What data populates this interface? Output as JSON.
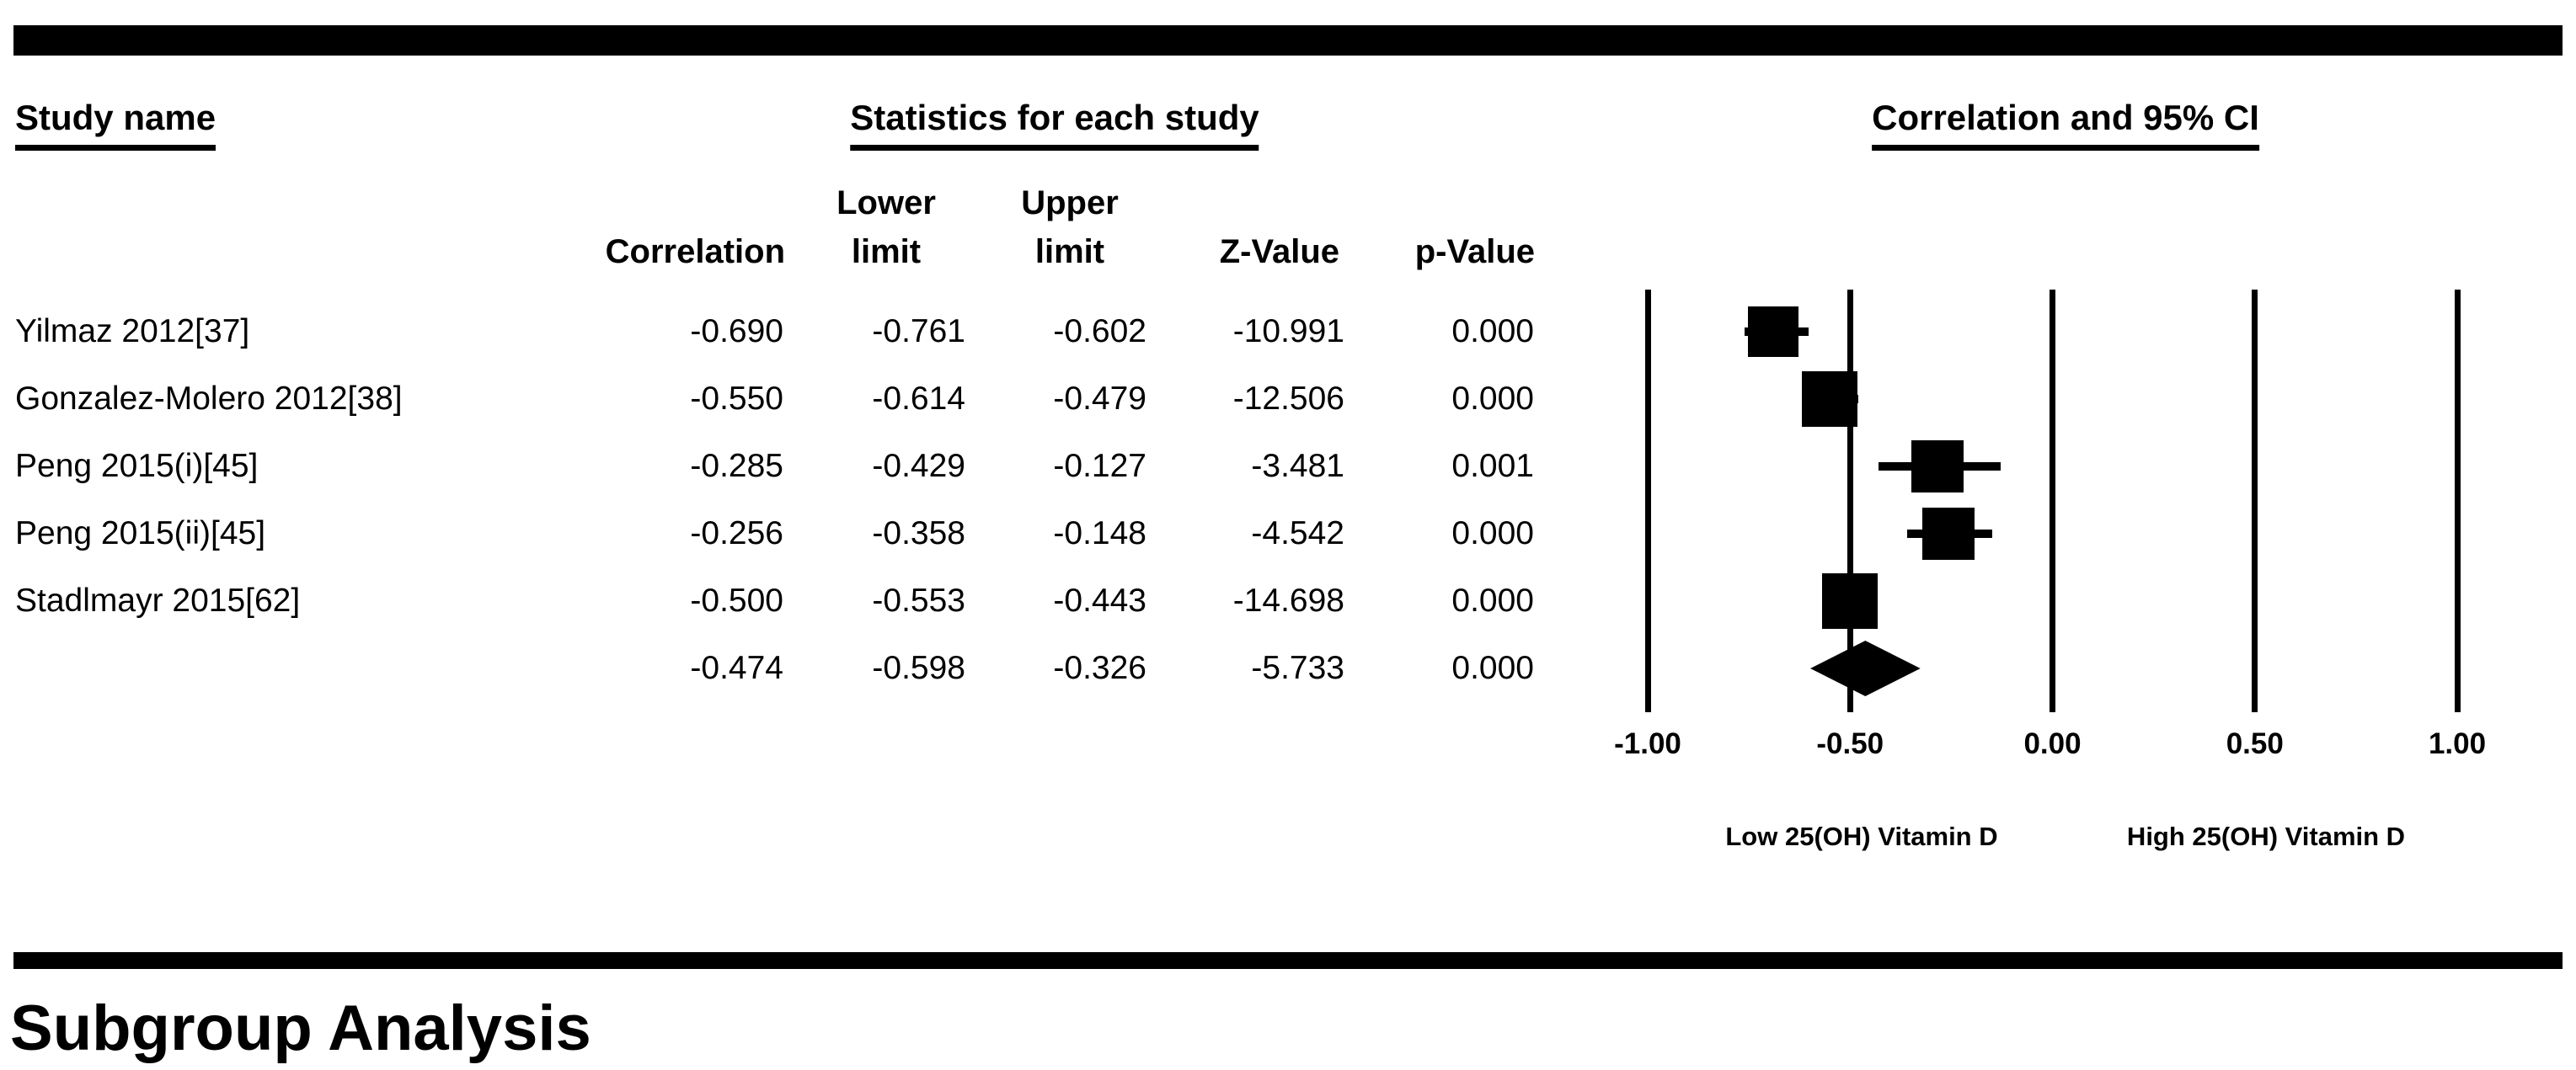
{
  "headings": {
    "study_column": "Study name",
    "stats_section": "Statistics for each study",
    "plot_section": "Correlation and 95% CI"
  },
  "columns": [
    {
      "line1": "",
      "line2": "Correlation"
    },
    {
      "line1": "Lower",
      "line2": "limit"
    },
    {
      "line1": "Upper",
      "line2": "limit"
    },
    {
      "line1": "",
      "line2": "Z-Value"
    },
    {
      "line1": "",
      "line2": "p-Value"
    }
  ],
  "chart_data": {
    "type": "forest",
    "xlabel": "",
    "xlim": [
      -1.0,
      1.0
    ],
    "x_ticks": [
      -1.0,
      -0.5,
      0.0,
      0.5,
      1.0
    ],
    "x_tick_labels": [
      "-1.00",
      "-0.50",
      "0.00",
      "0.50",
      "1.00"
    ],
    "grid": "vertical-lines-at-ticks",
    "left_label": "Low 25(OH) Vitamin D",
    "right_label": "High 25(OH) Vitamin D",
    "studies": [
      {
        "name": "Yilmaz 2012[37]",
        "correlation": "-0.690",
        "lower": "-0.761",
        "upper": "-0.602",
        "z": "-10.991",
        "p": "0.000",
        "marker_px": 60
      },
      {
        "name": "Gonzalez-Molero 2012[38]",
        "correlation": "-0.550",
        "lower": "-0.614",
        "upper": "-0.479",
        "z": "-12.506",
        "p": "0.000",
        "marker_px": 66
      },
      {
        "name": "Peng 2015(i)[45]",
        "correlation": "-0.285",
        "lower": "-0.429",
        "upper": "-0.127",
        "z": "-3.481",
        "p": "0.001",
        "marker_px": 62
      },
      {
        "name": "Peng 2015(ii)[45]",
        "correlation": "-0.256",
        "lower": "-0.358",
        "upper": "-0.148",
        "z": "-4.542",
        "p": "0.000",
        "marker_px": 62
      },
      {
        "name": "Stadlmayr 2015[62]",
        "correlation": "-0.500",
        "lower": "-0.553",
        "upper": "-0.443",
        "z": "-14.698",
        "p": "0.000",
        "marker_px": 66
      }
    ],
    "summary": {
      "name": "",
      "correlation": "-0.474",
      "lower": "-0.598",
      "upper": "-0.326",
      "z": "-5.733",
      "p": "0.000"
    }
  },
  "footer": {
    "subgroup_heading": "Subgroup Analysis"
  }
}
